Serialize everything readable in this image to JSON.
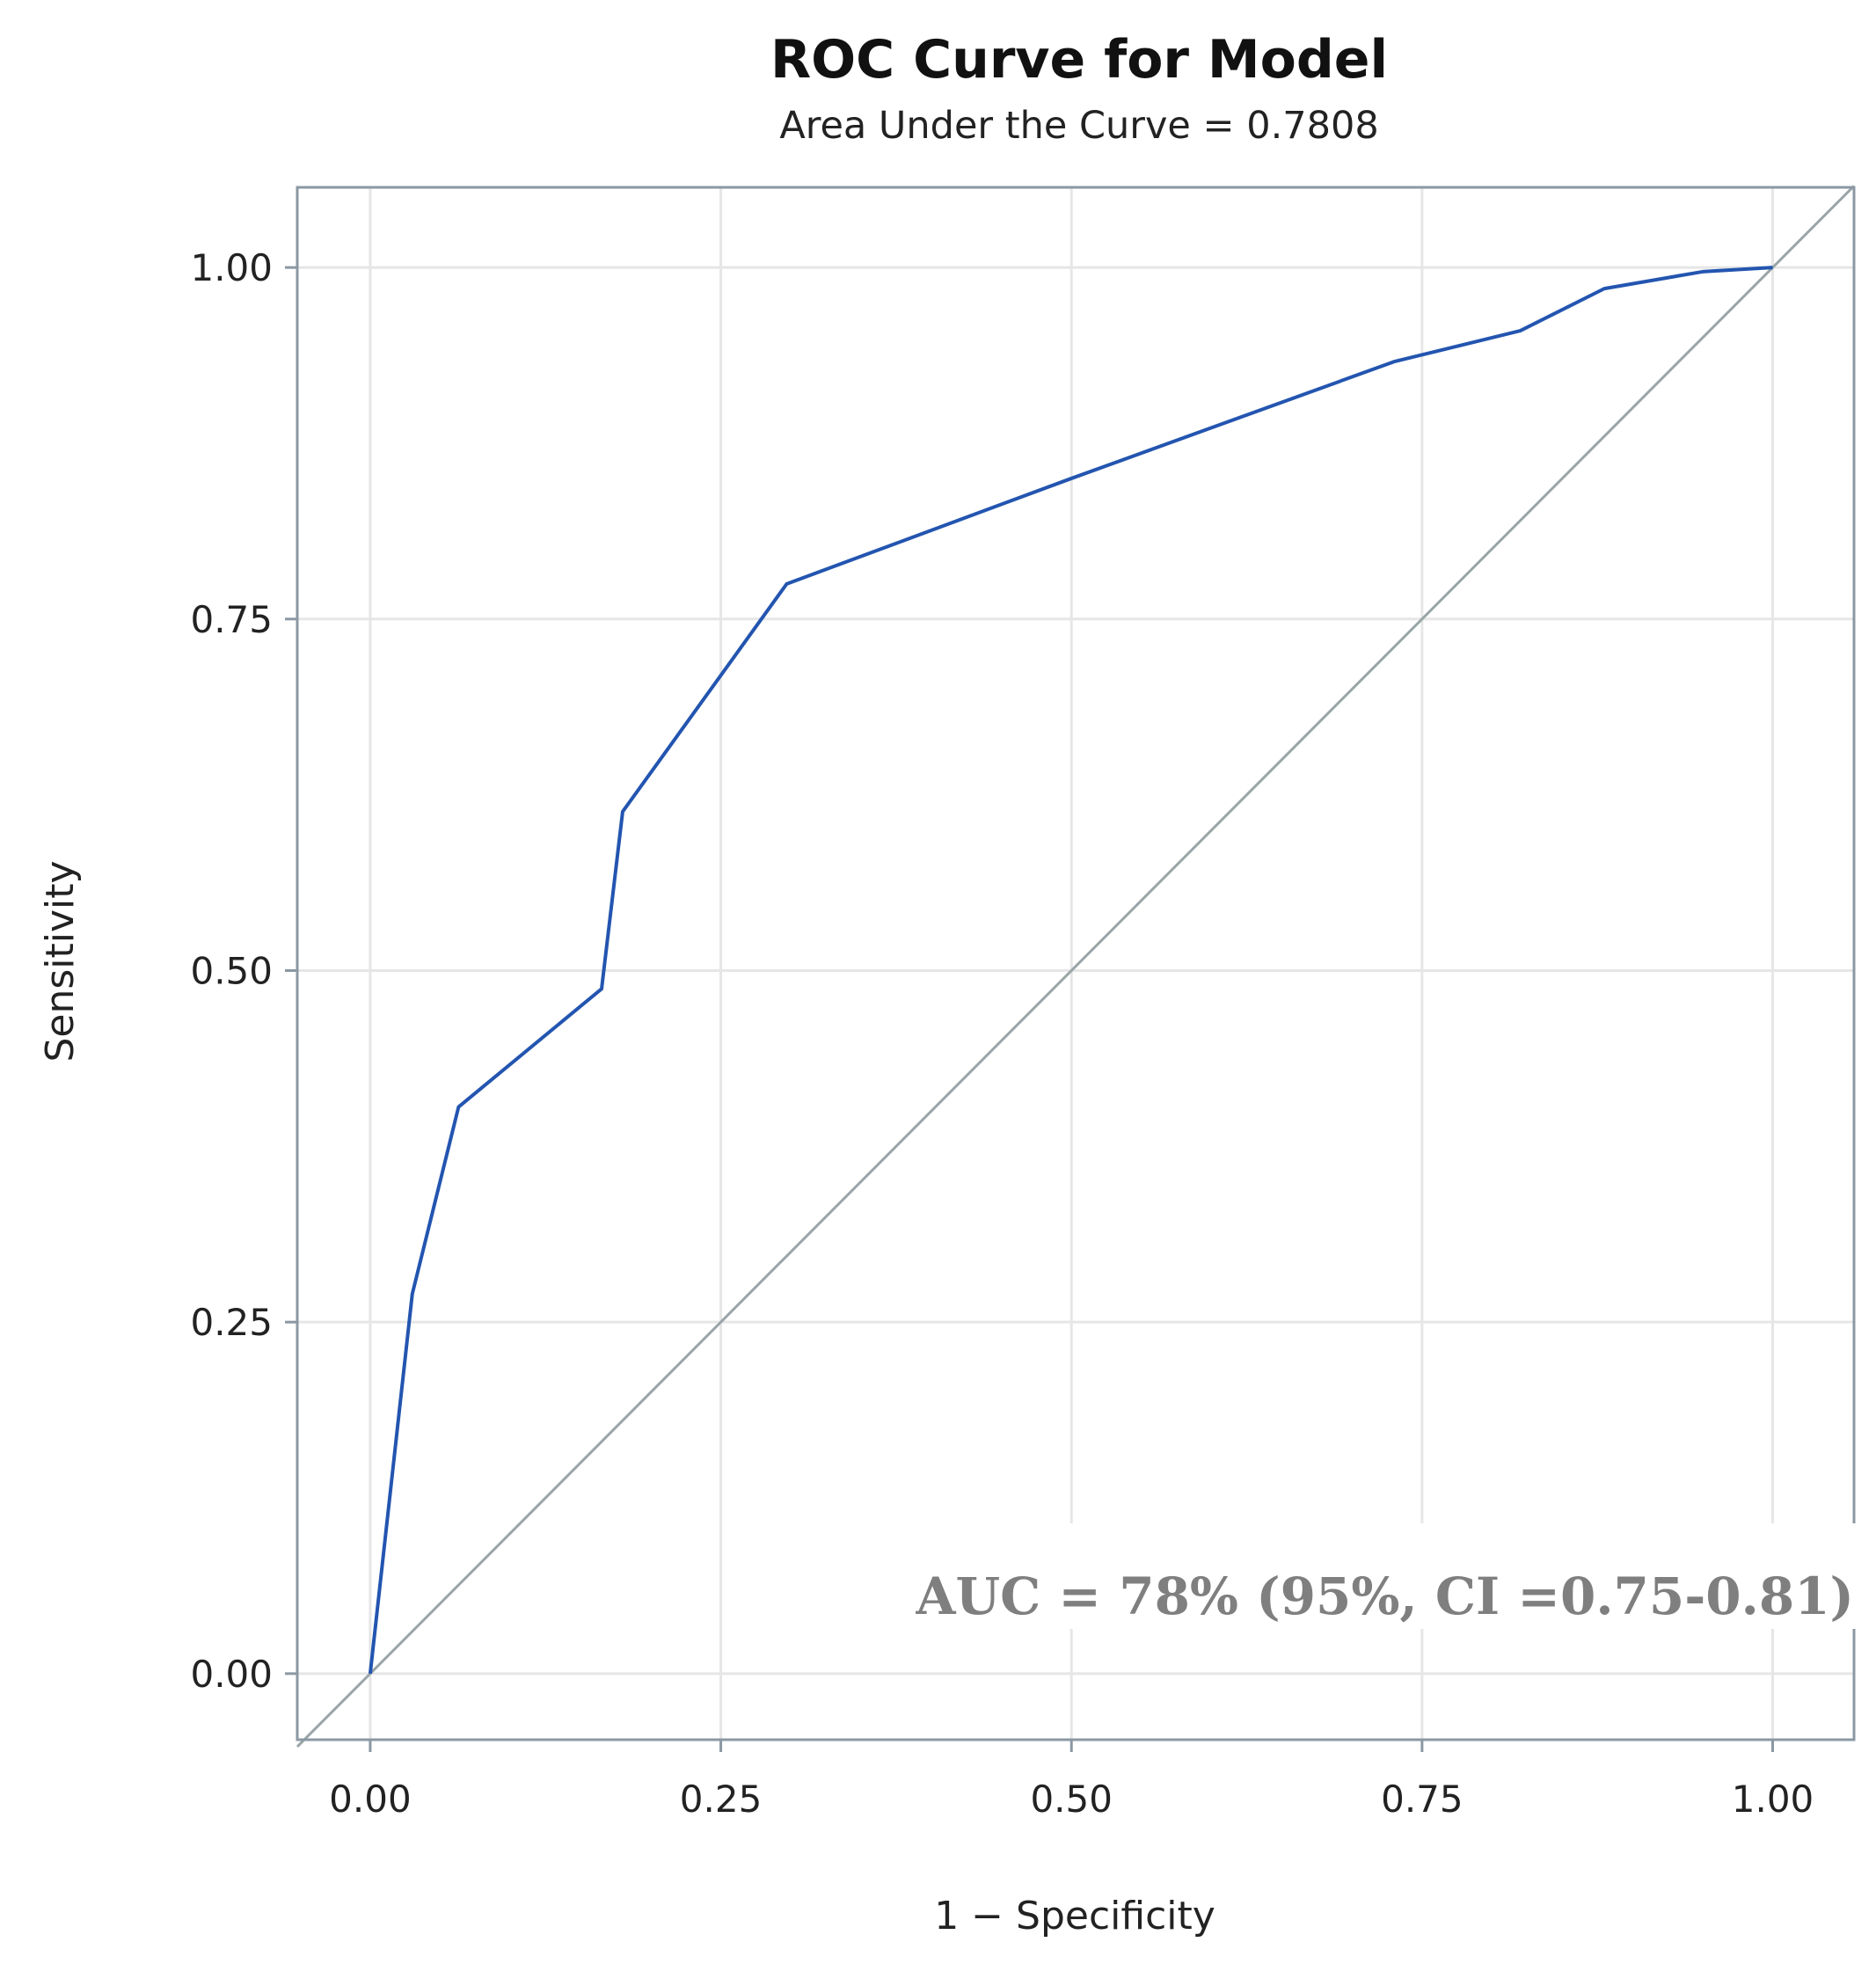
{
  "chart_data": {
    "type": "line",
    "title": "ROC Curve for Model",
    "subtitle": "Area Under the Curve = 0.7808",
    "xlabel": "1 − Specificity",
    "ylabel": "Sensitivity",
    "xlim": [
      -0.052,
      1.058
    ],
    "ylim": [
      -0.047,
      1.057
    ],
    "x_ticks": [
      0.0,
      0.25,
      0.5,
      0.75,
      1.0
    ],
    "y_ticks": [
      0.0,
      0.25,
      0.5,
      0.75,
      1.0
    ],
    "x_tick_labels": [
      "0.00",
      "0.25",
      "0.50",
      "0.75",
      "1.00"
    ],
    "y_tick_labels": [
      "0.00",
      "0.25",
      "0.50",
      "0.75",
      "1.00"
    ],
    "grid": true,
    "series": [
      {
        "color": "#2355b0",
        "points": [
          [
            0.0,
            0.0
          ],
          [
            0.03,
            0.27
          ],
          [
            0.063,
            0.403
          ],
          [
            0.165,
            0.487
          ],
          [
            0.18,
            0.613
          ],
          [
            0.297,
            0.775
          ],
          [
            0.5,
            0.85
          ],
          [
            0.73,
            0.933
          ],
          [
            0.82,
            0.955
          ],
          [
            0.88,
            0.985
          ],
          [
            0.95,
            0.997
          ],
          [
            1.0,
            1.0
          ]
        ]
      },
      {
        "color": "#9aa5a8",
        "points": [
          [
            -0.052,
            -0.052
          ],
          [
            1.058,
            1.058
          ]
        ]
      }
    ],
    "annotation": "AUC = 78% (95%, CI =0.75-0.81)",
    "colors": {
      "frame": "#8b98a3",
      "grid": "#e6e6e6",
      "annotation": "#7f7f7f"
    }
  }
}
